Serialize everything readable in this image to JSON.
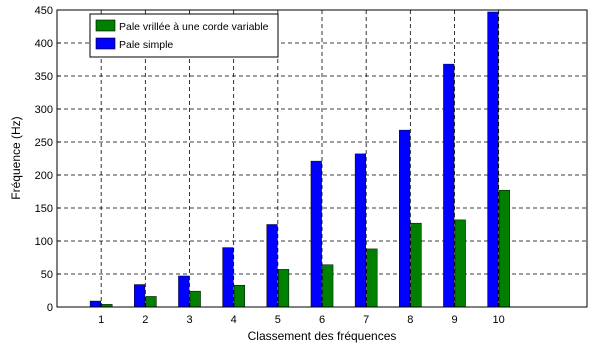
{
  "chart_data": {
    "type": "bar",
    "title": "",
    "xlabel": "Classement des fréquences",
    "ylabel": "Fréquence (Hz)",
    "categories": [
      "1",
      "2",
      "3",
      "4",
      "5",
      "6",
      "7",
      "8",
      "9",
      "10"
    ],
    "ylim": [
      0,
      450
    ],
    "yticks": [
      "0",
      "50",
      "100",
      "150",
      "200",
      "250",
      "300",
      "350",
      "400",
      "450"
    ],
    "xlim": [
      0,
      12
    ],
    "grid": true,
    "legend_position": "top-left",
    "series": [
      {
        "name": "Pale vrillée à une corde variable",
        "color": "#008000",
        "values": [
          4,
          16,
          24,
          33,
          57,
          64,
          88,
          127,
          132,
          177
        ]
      },
      {
        "name": "Pale simple",
        "color": "#0000ff",
        "values": [
          9,
          34,
          47,
          90,
          125,
          221,
          232,
          268,
          368,
          447
        ]
      }
    ]
  }
}
